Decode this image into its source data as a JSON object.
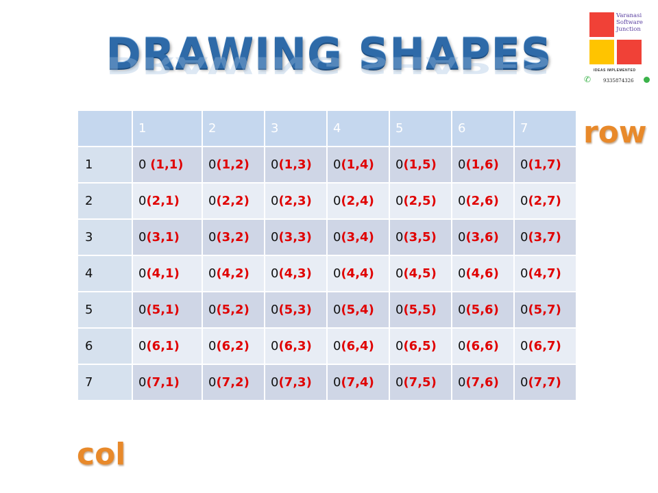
{
  "title": "DRAWING SHAPES",
  "logo": {
    "brand_lines": [
      "Varanasi",
      "Software",
      "Junction"
    ],
    "tagline": "IDEAS IMPLEMENTED",
    "phone": "9335874326",
    "colors": {
      "red": "#f04137",
      "yellow": "#ffc400",
      "purple": "#5a3fa0",
      "green": "#3bb34a"
    }
  },
  "table": {
    "corner": "",
    "col_headers": [
      "1",
      "2",
      "3",
      "4",
      "5",
      "6",
      "7"
    ],
    "rows": [
      {
        "label": "1",
        "cells": [
          [
            "0 ",
            "(1,1)"
          ],
          [
            "0",
            "(1,2)"
          ],
          [
            "0",
            "(1,3)"
          ],
          [
            "0",
            "(1,4)"
          ],
          [
            "0",
            "(1,5)"
          ],
          [
            "0",
            "(1,6)"
          ],
          [
            "0",
            "(1,7)"
          ]
        ]
      },
      {
        "label": "2",
        "cells": [
          [
            "0",
            "(2,1)"
          ],
          [
            "0",
            "(2,2)"
          ],
          [
            "0",
            "(2,3)"
          ],
          [
            "0",
            "(2,4)"
          ],
          [
            "0",
            "(2,5)"
          ],
          [
            "0",
            "(2,6)"
          ],
          [
            "0",
            "(2,7)"
          ]
        ]
      },
      {
        "label": "3",
        "cells": [
          [
            "0",
            "(3,1)"
          ],
          [
            "0",
            "(3,2)"
          ],
          [
            "0",
            "(3,3)"
          ],
          [
            "0",
            "(3,4)"
          ],
          [
            "0",
            "(3,5)"
          ],
          [
            "0",
            "(3,6)"
          ],
          [
            "0",
            "(3,7)"
          ]
        ]
      },
      {
        "label": "4",
        "cells": [
          [
            "0",
            "(4,1)"
          ],
          [
            "0",
            "(4,2)"
          ],
          [
            "0",
            "(4,3)"
          ],
          [
            "0",
            "(4,4)"
          ],
          [
            "0",
            "(4,5)"
          ],
          [
            "0",
            "(4,6)"
          ],
          [
            "0",
            "(4,7)"
          ]
        ]
      },
      {
        "label": "5",
        "cells": [
          [
            "0",
            "(5,1)"
          ],
          [
            "0",
            "(5,2)"
          ],
          [
            "0",
            "(5,3)"
          ],
          [
            "0",
            "(5,4)"
          ],
          [
            "0",
            "(5,5)"
          ],
          [
            "0",
            "(5,6)"
          ],
          [
            "0",
            "(5,7)"
          ]
        ]
      },
      {
        "label": "6",
        "cells": [
          [
            "0",
            "(6,1)"
          ],
          [
            "0",
            "(6,2)"
          ],
          [
            "0",
            "(6,3)"
          ],
          [
            "0",
            "(6,4)"
          ],
          [
            "0",
            "(6,5)"
          ],
          [
            "0",
            "(6,6)"
          ],
          [
            "0",
            "(6,7)"
          ]
        ]
      },
      {
        "label": "7",
        "cells": [
          [
            "0",
            "(7,1)"
          ],
          [
            "0",
            "(7,2)"
          ],
          [
            "0",
            "(7,3)"
          ],
          [
            "0",
            "(7,4)"
          ],
          [
            "0",
            "(7,5)"
          ],
          [
            "0",
            "(7,6)"
          ],
          [
            "0",
            "(7,7)"
          ]
        ]
      }
    ],
    "colors": {
      "header": "#c5d7ee",
      "row_odd": "#cfd6e6",
      "row_even": "#e8edf5",
      "coord": "#e00000"
    }
  },
  "labels": {
    "row": "row",
    "col": "col",
    "color": "#e8892a"
  }
}
